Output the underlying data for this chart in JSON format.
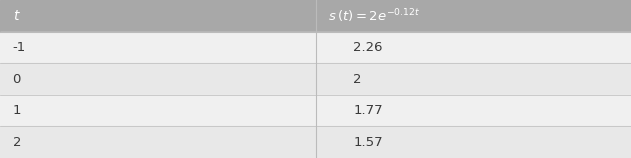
{
  "col1_header": "t",
  "col2_header": "s(t) = 2e^{-0.12t}",
  "rows": [
    [
      "-1",
      "2.26"
    ],
    [
      "0",
      "2"
    ],
    [
      "1",
      "1.77"
    ],
    [
      "2",
      "1.57"
    ]
  ],
  "header_bg": "#a8a8a8",
  "row_bg_odd": "#f0f0f0",
  "row_bg_even": "#e8e8e8",
  "header_text_color": "#ffffff",
  "cell_text_color": "#3a3a3a",
  "col_split": 0.5,
  "fig_width": 6.31,
  "fig_height": 1.58,
  "header_fontsize": 10,
  "cell_fontsize": 9.5,
  "border_color": "#bbbbbb"
}
